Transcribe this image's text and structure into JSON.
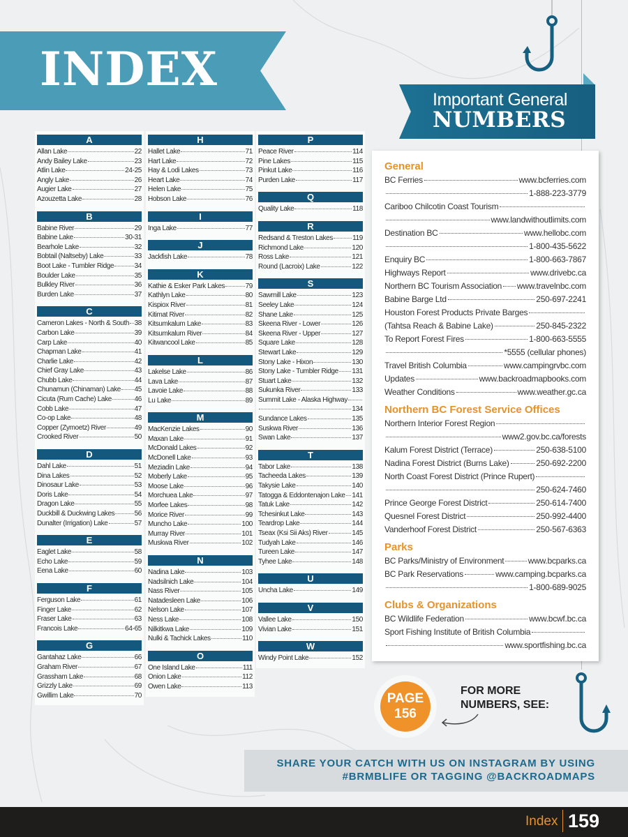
{
  "header": {
    "title": "INDEX"
  },
  "index_columns": [
    [
      {
        "letter": "A",
        "entries": [
          [
            "Allan Lake",
            "22"
          ],
          [
            "Andy Bailey Lake",
            "23"
          ],
          [
            "Atlin Lake",
            "24-25"
          ],
          [
            "Angly Lake",
            "26"
          ],
          [
            "Augier Lake",
            "27"
          ],
          [
            "Azouzetta Lake",
            "28"
          ]
        ]
      },
      {
        "letter": "B",
        "entries": [
          [
            "Babine River",
            "29"
          ],
          [
            "Babine Lake",
            "30-31"
          ],
          [
            "Bearhole Lake",
            "32"
          ],
          [
            "Bobtail (Naltseby) Lake",
            "33"
          ],
          [
            "Boot Lake - Tumbler Ridge",
            "34"
          ],
          [
            "Boulder Lake",
            "35"
          ],
          [
            "Bulkley River",
            "36"
          ],
          [
            "Burden Lake",
            "37"
          ]
        ]
      },
      {
        "letter": "C",
        "entries": [
          [
            "Cameron Lakes - North & South",
            "38"
          ],
          [
            "Carbon Lake",
            "39"
          ],
          [
            "Carp Lake",
            "40"
          ],
          [
            "Chapman Lake",
            "41"
          ],
          [
            "Charlie Lake",
            "42"
          ],
          [
            "Chief Gray Lake",
            "43"
          ],
          [
            "Chubb Lake",
            "44"
          ],
          [
            "Chunamun (Chinaman) Lake",
            "45"
          ],
          [
            "Cicuta (Rum Cache) Lake",
            "46"
          ],
          [
            "Cobb Lake",
            "47"
          ],
          [
            "Co-op Lake",
            "48"
          ],
          [
            "Copper (Zymoetz) River",
            "49"
          ],
          [
            "Crooked River",
            "50"
          ]
        ]
      },
      {
        "letter": "D",
        "entries": [
          [
            "Dahl Lake",
            "51"
          ],
          [
            "Dina Lakes",
            "52"
          ],
          [
            "Dinosaur Lake",
            "53"
          ],
          [
            "Doris Lake",
            "54"
          ],
          [
            "Dragon Lake",
            "55"
          ],
          [
            "Duckbill & Duckwing Lakes",
            "56"
          ],
          [
            "Dunalter (Irrigation) Lake",
            "57"
          ]
        ]
      },
      {
        "letter": "E",
        "entries": [
          [
            "Eaglet Lake",
            "58"
          ],
          [
            "Echo Lake",
            "59"
          ],
          [
            "Eena Lake",
            "60"
          ]
        ]
      },
      {
        "letter": "F",
        "entries": [
          [
            "Ferguson Lake",
            "61"
          ],
          [
            "Finger Lake",
            "62"
          ],
          [
            "Fraser Lake",
            "63"
          ],
          [
            "Francois Lake",
            "64-65"
          ]
        ]
      },
      {
        "letter": "G",
        "entries": [
          [
            "Gantahaz Lake",
            "66"
          ],
          [
            "Graham River",
            "67"
          ],
          [
            "Grassham Lake",
            "68"
          ],
          [
            "Grizzly Lake",
            "69"
          ],
          [
            "Gwillim Lake",
            "70"
          ]
        ]
      }
    ],
    [
      {
        "letter": "H",
        "entries": [
          [
            "Hallet Lake",
            "71"
          ],
          [
            "Hart Lake",
            "72"
          ],
          [
            "Hay & Lodi Lakes",
            "73"
          ],
          [
            "Heart Lake",
            "74"
          ],
          [
            "Helen Lake",
            "75"
          ],
          [
            "Hobson Lake",
            "76"
          ]
        ]
      },
      {
        "letter": "I",
        "entries": [
          [
            "Inga Lake",
            "77"
          ]
        ]
      },
      {
        "letter": "J",
        "entries": [
          [
            "Jackfish Lake",
            "78"
          ]
        ]
      },
      {
        "letter": "K",
        "entries": [
          [
            "Kathie & Esker Park Lakes",
            "79"
          ],
          [
            "Kathlyn Lake",
            "80"
          ],
          [
            "Kispiox River",
            "81"
          ],
          [
            "Kitimat River",
            "82"
          ],
          [
            "Kitsumkalum Lake",
            "83"
          ],
          [
            "Kitsumkalum River",
            "84"
          ],
          [
            "Kitwancool Lake",
            "85"
          ]
        ]
      },
      {
        "letter": "L",
        "entries": [
          [
            "Lakelse Lake",
            "86"
          ],
          [
            "Lava Lake",
            "87"
          ],
          [
            "Lavoie Lake",
            "88"
          ],
          [
            "Lu Lake",
            "89"
          ]
        ]
      },
      {
        "letter": "M",
        "entries": [
          [
            "MacKenzie Lakes",
            "90"
          ],
          [
            "Maxan Lake",
            "91"
          ],
          [
            "McDonald Lakes",
            "92"
          ],
          [
            "McDonell Lake",
            "93"
          ],
          [
            "Meziadin Lake",
            "94"
          ],
          [
            "Moberly Lake",
            "95"
          ],
          [
            "Moose Lake",
            "96"
          ],
          [
            "Morchuea Lake",
            "97"
          ],
          [
            "Morfee Lakes",
            "98"
          ],
          [
            "Morice River",
            "99"
          ],
          [
            "Muncho Lake",
            "100"
          ],
          [
            "Murray River",
            "101"
          ],
          [
            "Muskwa River",
            "102"
          ]
        ]
      },
      {
        "letter": "N",
        "entries": [
          [
            "Nadina Lake",
            "103"
          ],
          [
            "Nadsilnich Lake",
            "104"
          ],
          [
            "Nass River",
            "105"
          ],
          [
            "Natadesleen Lake",
            "106"
          ],
          [
            "Nelson Lake",
            "107"
          ],
          [
            "Ness Lake",
            "108"
          ],
          [
            "Nilkitkwa Lake",
            "109"
          ],
          [
            "Nulki & Tachick Lakes",
            "110"
          ]
        ]
      },
      {
        "letter": "O",
        "entries": [
          [
            "One Island Lake",
            "111"
          ],
          [
            "Onion Lake",
            "112"
          ],
          [
            "Owen Lake",
            "113"
          ]
        ]
      }
    ],
    [
      {
        "letter": "P",
        "entries": [
          [
            "Peace River",
            "114"
          ],
          [
            "Pine Lakes",
            "115"
          ],
          [
            "Pinkut Lake",
            "116"
          ],
          [
            "Purden Lake",
            "117"
          ]
        ]
      },
      {
        "letter": "Q",
        "entries": [
          [
            "Quality Lake",
            "118"
          ]
        ]
      },
      {
        "letter": "R",
        "entries": [
          [
            "Redsand & Treston Lakes",
            "119"
          ],
          [
            "Richmond Lake",
            "120"
          ],
          [
            "Ross Lake",
            "121"
          ],
          [
            "Round (Lacroix) Lake",
            "122"
          ]
        ]
      },
      {
        "letter": "S",
        "entries": [
          [
            "Sawmill Lake",
            "123"
          ],
          [
            "Seeley Lake",
            "124"
          ],
          [
            "Shane Lake",
            "125"
          ],
          [
            "Skeena River - Lower",
            "126"
          ],
          [
            "Skeena River - Upper",
            "127"
          ],
          [
            "Square Lake",
            "128"
          ],
          [
            "Stewart Lake",
            "129"
          ],
          [
            "Stony Lake - Hixon",
            "130"
          ],
          [
            "Stony Lake - Tumbler Ridge",
            "131"
          ],
          [
            "Stuart Lake",
            "132"
          ],
          [
            "Sukunka River",
            "133"
          ],
          [
            "Summit Lake - Alaska Highway",
            ""
          ],
          [
            "",
            "134"
          ],
          [
            "Sundance Lakes",
            "135"
          ],
          [
            "Suskwa River",
            "136"
          ],
          [
            "Swan Lake",
            "137"
          ]
        ]
      },
      {
        "letter": "T",
        "entries": [
          [
            "Tabor Lake",
            "138"
          ],
          [
            "Tacheeda Lakes",
            "139"
          ],
          [
            "Takysie Lake",
            "140"
          ],
          [
            "Tatogga & Eddontenajon Lake",
            "141"
          ],
          [
            "Tatuk Lake",
            "142"
          ],
          [
            "Tchesinkut Lake",
            "143"
          ],
          [
            "Teardrop Lake",
            "144"
          ],
          [
            "Tseax (Ksi Sii Aks) River",
            "145"
          ],
          [
            "Tudyah Lake",
            "146"
          ],
          [
            "Tureen Lake",
            "147"
          ],
          [
            "Tyhee Lake",
            "148"
          ]
        ]
      },
      {
        "letter": "U",
        "entries": [
          [
            "Uncha Lake",
            "149"
          ]
        ]
      },
      {
        "letter": "V",
        "entries": [
          [
            "Vallee Lake",
            "150"
          ],
          [
            "Vivian Lake",
            "151"
          ]
        ]
      },
      {
        "letter": "W",
        "entries": [
          [
            "Windy Point Lake",
            "152"
          ]
        ]
      }
    ]
  ],
  "numbers": {
    "title_line1": "Important General",
    "title_line2": "NUMBERS",
    "sections": [
      {
        "heading": "General",
        "lines": [
          [
            "BC Ferries",
            "www.bcferries.com"
          ],
          [
            "",
            "1-888-223-3779"
          ],
          [
            "Cariboo Chilcotin Coast Tourism",
            ""
          ],
          [
            "",
            "www.landwithoutlimits.com"
          ],
          [
            "Destination BC",
            "www.hellobc.com"
          ],
          [
            "",
            "1-800-435-5622"
          ],
          [
            "Enquiry BC",
            "1-800-663-7867"
          ],
          [
            "Highways Report",
            "www.drivebc.ca"
          ],
          [
            "Northern BC Tourism Association",
            "www.travelnbc.com"
          ],
          [
            "Babine Barge Ltd",
            "250-697-2241"
          ],
          [
            "Houston Forest Products Private Barges",
            ""
          ],
          [
            "(Tahtsa Reach & Babine Lake)",
            "250-845-2322"
          ],
          [
            "To Report Forest Fires",
            "1-800-663-5555"
          ],
          [
            "",
            "*5555 (cellular phones)"
          ],
          [
            "Travel British Columbia",
            "www.campingrvbc.com"
          ],
          [
            "Updates",
            "www.backroadmapbooks.com"
          ],
          [
            "Weather Conditions",
            "www.weather.gc.ca"
          ]
        ]
      },
      {
        "heading": "Northern BC Forest Service Offices",
        "lines": [
          [
            "Northern Interior Forest Region",
            ""
          ],
          [
            "",
            "www2.gov.bc.ca/forests"
          ],
          [
            "Kalum Forest District  (Terrace)",
            "250-638-5100"
          ],
          [
            "Nadina Forest District (Burns Lake)",
            "250-692-2200"
          ],
          [
            "North Coast Forest District (Prince Rupert)",
            ""
          ],
          [
            "",
            "250-624-7460"
          ],
          [
            "Prince George Forest District",
            "250-614-7400"
          ],
          [
            "Quesnel Forest District",
            "250-992-4400"
          ],
          [
            "Vanderhoof Forest District",
            "250-567-6363"
          ]
        ]
      },
      {
        "heading": "Parks",
        "lines": [
          [
            "BC Parks/Ministry of Environment",
            "www.bcparks.ca"
          ],
          [
            "BC Park Reservations",
            "www.camping.bcparks.ca"
          ],
          [
            "",
            "1-800-689-9025"
          ]
        ]
      },
      {
        "heading": "Clubs & Organizations",
        "lines": [
          [
            "BC Wildlife Federation",
            "www.bcwf.bc.ca"
          ],
          [
            "Sport Fishing Institute of British Columbia",
            ""
          ],
          [
            "",
            "www.sportfishing.bc.ca"
          ]
        ]
      }
    ]
  },
  "callout": {
    "page_word": "PAGE",
    "page_number": "156",
    "see_line1": "FOR MORE",
    "see_line2": "NUMBERS, SEE:"
  },
  "instagram": {
    "line1": "SHARE YOUR CATCH WITH US ON INSTAGRAM BY USING",
    "line2": "#BRMBLIFE OR TAGGING @BACKROADMAPS"
  },
  "footer": {
    "section": "Index",
    "page": "159"
  },
  "colors": {
    "brand_blue": "#1c7193",
    "index_banner": "#4b9cb7",
    "header_bar": "#14597d",
    "accent_orange": "#e8922a",
    "footer": "#1f1d1c"
  },
  "icons": [
    "fish-hook-icon",
    "curved-arrow-icon"
  ]
}
